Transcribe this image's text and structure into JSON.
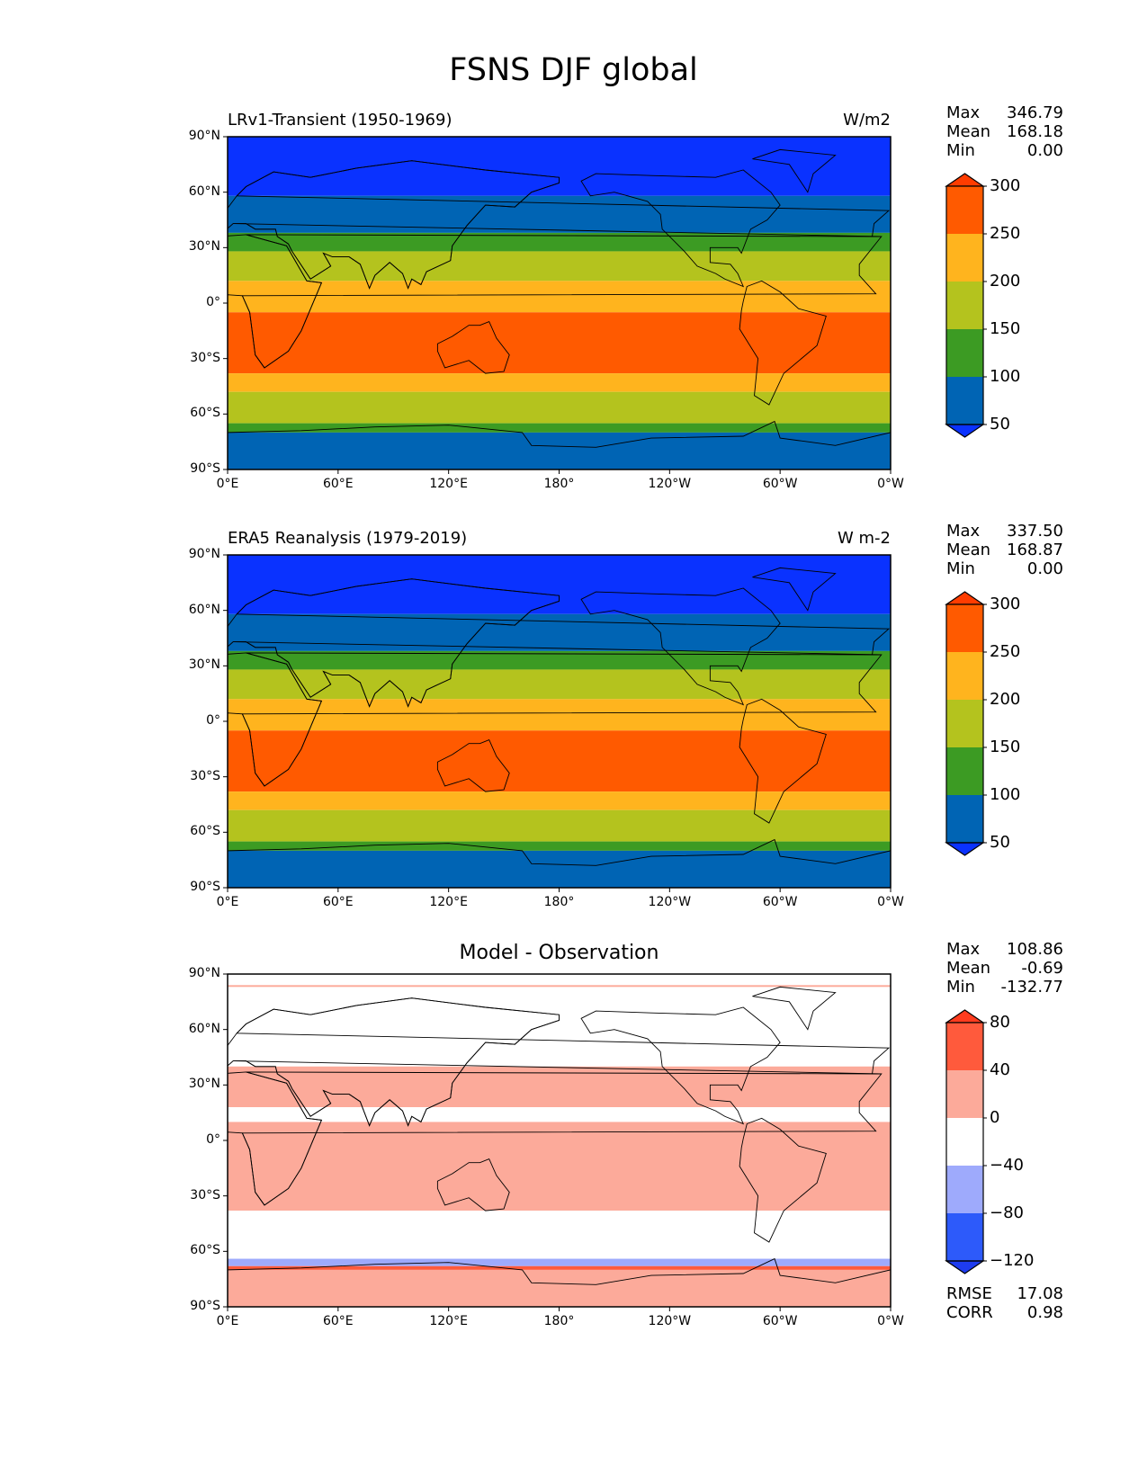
{
  "title": "FSNS DJF global",
  "axes": {
    "lat_labels": [
      "90°N",
      "60°N",
      "30°N",
      "0°",
      "30°S",
      "60°S",
      "90°S"
    ],
    "lon_labels": [
      "0°E",
      "60°E",
      "120°E",
      "180°",
      "120°W",
      "60°W",
      "0°W"
    ]
  },
  "panels": [
    {
      "title_left": "LRv1-Transient (1950-1969)",
      "title_right": "W/m2",
      "title_center": "",
      "stats": [
        {
          "label": "Max",
          "value": "346.79"
        },
        {
          "label": "Mean",
          "value": "168.18"
        },
        {
          "label": "Min",
          "value": "0.00"
        }
      ],
      "colorbar": {
        "labels": [
          "300",
          "250",
          "200",
          "150",
          "100",
          "50"
        ],
        "colors": [
          "#ff5a00",
          "#ffb41e",
          "#b4c31e",
          "#3c9b23",
          "#0064b4"
        ],
        "top_tip": "#ff3c00",
        "bottom_tip": "#0a32ff"
      },
      "extra_stats": []
    },
    {
      "title_left": "ERA5 Reanalysis (1979-2019)",
      "title_right": "W m-2",
      "title_center": "",
      "stats": [
        {
          "label": "Max",
          "value": "337.50"
        },
        {
          "label": "Mean",
          "value": "168.87"
        },
        {
          "label": "Min",
          "value": "0.00"
        }
      ],
      "colorbar": {
        "labels": [
          "300",
          "250",
          "200",
          "150",
          "100",
          "50"
        ],
        "colors": [
          "#ff5a00",
          "#ffb41e",
          "#b4c31e",
          "#3c9b23",
          "#0064b4"
        ],
        "top_tip": "#ff3c00",
        "bottom_tip": "#0a32ff"
      },
      "extra_stats": []
    },
    {
      "title_left": "",
      "title_right": "",
      "title_center": "Model - Observation",
      "stats": [
        {
          "label": "Max",
          "value": "108.86"
        },
        {
          "label": "Mean",
          "value": "-0.69"
        },
        {
          "label": "Min",
          "value": "-132.77"
        }
      ],
      "colorbar": {
        "labels": [
          "80",
          "40",
          "0",
          "−40",
          "−80",
          "−120"
        ],
        "colors": [
          "#ff5a3c",
          "#fcaa9a",
          "#ffffff",
          "#9eaafc",
          "#2d5afa"
        ],
        "top_tip": "#ff3c1e",
        "bottom_tip": "#1e3cf0"
      },
      "extra_stats": [
        {
          "label": "RMSE",
          "value": "17.08"
        },
        {
          "label": "CORR",
          "value": "0.98"
        }
      ]
    }
  ]
}
